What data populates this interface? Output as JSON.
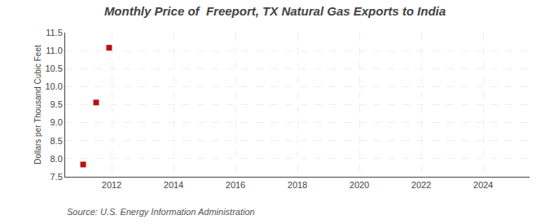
{
  "chart_data": {
    "type": "scatter",
    "title": "Monthly Price of  Freeport, TX Natural Gas Exports to India",
    "ylabel": "Dollars per Thousand Cubic Feet",
    "annotations": [
      "Source: U.S. Energy Information Administration"
    ],
    "x": [
      2011.08,
      2011.5,
      2011.92
    ],
    "values": [
      7.84,
      9.56,
      11.08
    ],
    "color": "#bb1111",
    "marker": "square",
    "xlim": [
      2010.5,
      2025.5
    ],
    "xticks": [
      2012,
      2014,
      2016,
      2018,
      2020,
      2022,
      2024
    ],
    "ylim": [
      7.5,
      11.5
    ],
    "yticks": [
      7.5,
      {
        "value": 8.0,
        "label": "8.0"
      },
      8.5,
      {
        "value": 9.0,
        "label": "9.0"
      },
      9.5,
      {
        "value": 10.0,
        "label": "10.0"
      },
      10.5,
      {
        "value": 11.0,
        "label": "11.0"
      },
      11.5
    ],
    "grid": true
  }
}
